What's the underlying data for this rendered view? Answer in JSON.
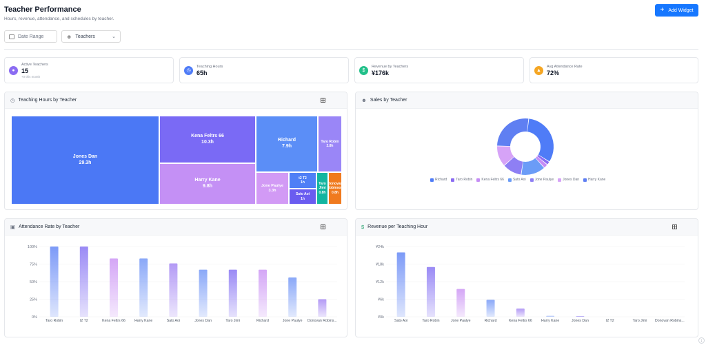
{
  "header": {
    "title": "Teacher Performance",
    "subtitle": "Hours, revenue, attendance, and schedules by teacher.",
    "add_widget_label": "Add Widget"
  },
  "filters": {
    "date_placeholder": "Date Range",
    "teachers_value": "Teachers"
  },
  "kpis": [
    {
      "label": "Active Teachers",
      "value": "15",
      "sub": "+0 this month",
      "color": "#8b6cf2",
      "icon": "people-icon"
    },
    {
      "label": "Teaching Hours",
      "value": "65h",
      "sub": "",
      "color": "#4f7cf7",
      "icon": "clock-icon"
    },
    {
      "label": "Revenue by Teachers",
      "value": "¥176k",
      "sub": "",
      "color": "#22c08a",
      "icon": "dollar-icon"
    },
    {
      "label": "Avg Attendance Rate",
      "value": "72%",
      "sub": "",
      "color": "#f5a623",
      "icon": "badge-icon"
    }
  ],
  "cards": {
    "hours_title": "Teaching Hours by Teacher",
    "sales_title": "Sales by Teacher",
    "attendance_title": "Attendance Rate by Teacher",
    "revenue_title": "Revenue per Teaching Hour"
  },
  "chart_data": [
    {
      "type": "treemap",
      "title": "Teaching Hours by Teacher",
      "items": [
        {
          "name": "Jones Dan",
          "label": "29.3h",
          "value": 29.3,
          "color": "#4b78f5"
        },
        {
          "name": "Kena Feltrs 66",
          "label": "10.3h",
          "value": 10.3,
          "color": "#7a6af5"
        },
        {
          "name": "Harry Kane",
          "label": "9.8h",
          "value": 9.8,
          "color": "#c490f5"
        },
        {
          "name": "Richard",
          "label": "7.9h",
          "value": 7.9,
          "color": "#5b8ef7"
        },
        {
          "name": "Taro Robin",
          "label": "2.8h",
          "value": 2.8,
          "color": "#9a86f7"
        },
        {
          "name": "Jone Paulye",
          "label": "3.3h",
          "value": 3.3,
          "color": "#d29af5"
        },
        {
          "name": "t2 T2",
          "label": "1h",
          "value": 1,
          "color": "#4f7ff6"
        },
        {
          "name": "Sato Aoi",
          "label": "1h",
          "value": 1,
          "color": "#6a5cf0"
        },
        {
          "name": "Taro Jimi",
          "label": "0.8h",
          "value": 0.8,
          "color": "#12b5a0"
        },
        {
          "name": "Donovan Robinson",
          "label": "0.8h",
          "value": 0.8,
          "color": "#f07a1e"
        }
      ]
    },
    {
      "type": "pie",
      "title": "Sales by Teacher",
      "legend_position": "bottom",
      "slices": [
        {
          "name": "Richard",
          "value": 32,
          "color": "#4f7cf7"
        },
        {
          "name": "Taro Robin",
          "value": 2,
          "color": "#8b6cf2"
        },
        {
          "name": "Kena Feltrs 66",
          "value": 2.5,
          "color": "#c58cf5"
        },
        {
          "name": "Sato Aoi",
          "value": 14,
          "color": "#6b9cf7"
        },
        {
          "name": "Jone Paulye",
          "value": 11,
          "color": "#8e7ff4"
        },
        {
          "name": "Jones Dan",
          "value": 12,
          "color": "#d6a3f7"
        },
        {
          "name": "Harry Kane",
          "value": 26.5,
          "color": "#5f7ff2"
        }
      ]
    },
    {
      "type": "bar",
      "title": "Attendance Rate by Teacher",
      "categories": [
        "Taro Robin",
        "t2 T2",
        "Kena Feltrs 66",
        "Harry Kane",
        "Sato Aoi",
        "Jones Dan",
        "Taro Jimi",
        "Richard",
        "Jone Paulye",
        "Donovan Robins..."
      ],
      "values": [
        100,
        100,
        83,
        83,
        76,
        67,
        67,
        67,
        56,
        25
      ],
      "colors": [
        "#7c9af7",
        "#9a8af5",
        "#d4a6f6",
        "#8aa8f8",
        "#b39af5",
        "#8aa8f8",
        "#9a8af5",
        "#d4a6f6",
        "#8aa8f8",
        "#b39af5"
      ],
      "yticks": [
        "0%",
        "25%",
        "50%",
        "75%",
        "100%"
      ],
      "ylim": [
        0,
        100
      ]
    },
    {
      "type": "bar",
      "title": "Revenue per Teaching Hour",
      "categories": [
        "Sato Aoi",
        "Taro Robin",
        "Jone Paulye",
        "Richard",
        "Kena Feltrs 66",
        "Harry Kane",
        "Jones Dan",
        "t2 T2",
        "Taro Jimi",
        "Donovan Robins..."
      ],
      "values": [
        22000,
        17000,
        9500,
        5800,
        2800,
        300,
        200,
        0,
        0,
        0
      ],
      "colors": [
        "#7c9af7",
        "#9a8af5",
        "#d4a6f6",
        "#8aa8f8",
        "#b39af5",
        "#8aa8f8",
        "#9a8af5",
        "#d4a6f6",
        "#8aa8f8",
        "#b39af5"
      ],
      "yticks": [
        "¥0k",
        "¥6k",
        "¥12k",
        "¥18k",
        "¥24k"
      ],
      "ylim": [
        0,
        24000
      ]
    }
  ]
}
